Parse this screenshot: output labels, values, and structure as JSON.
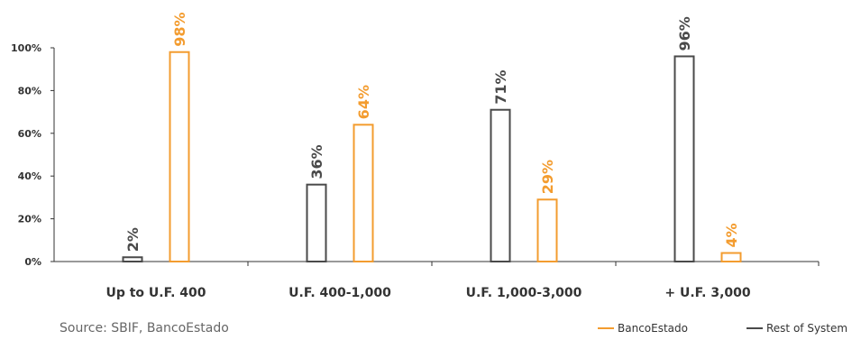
{
  "chart_data": {
    "type": "bar",
    "categories": [
      "Up to U.F. 400",
      "U.F. 400-1,000",
      "U.F. 1,000-3,000",
      "+ U.F. 3,000"
    ],
    "series": [
      {
        "name": "Rest of System",
        "color": "#4a4a4a",
        "values": [
          2,
          36,
          71,
          96
        ],
        "labels": [
          "2%",
          "36%",
          "71%",
          "96%"
        ]
      },
      {
        "name": "BancoEstado",
        "color": "#f39c2f",
        "values": [
          98,
          64,
          29,
          4
        ],
        "labels": [
          "98%",
          "64%",
          "29%",
          "4%"
        ]
      }
    ],
    "ylim": [
      0,
      100
    ],
    "yticks": [
      "0%",
      "20%",
      "40%",
      "60%",
      "80%",
      "100%"
    ],
    "grid": false,
    "legend": "bottom-right",
    "title": "",
    "xlabel": "",
    "ylabel": ""
  },
  "source": "Source: SBIF, BancoEstado",
  "legend": {
    "items": [
      {
        "label": "BancoEstado",
        "color": "#f39c2f"
      },
      {
        "label": "Rest of System",
        "color": "#4a4a4a"
      }
    ]
  }
}
